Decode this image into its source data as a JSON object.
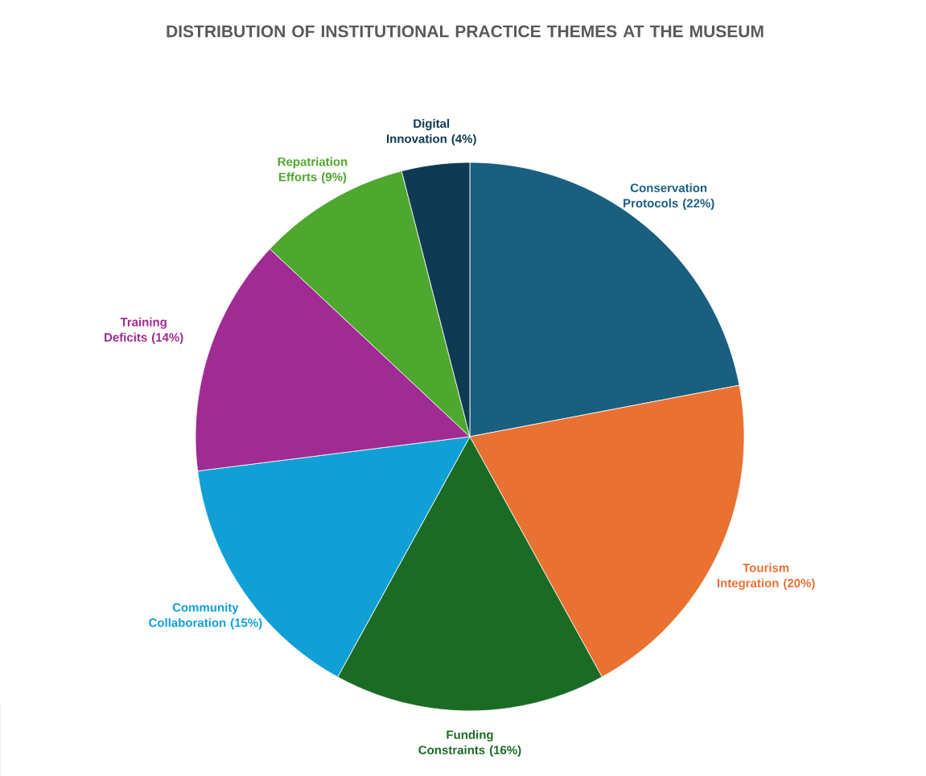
{
  "chart_data": {
    "type": "pie",
    "title": "DISTRIBUTION OF INSTITUTIONAL PRACTICE THEMES AT THE MUSEUM",
    "categories": [
      "Conservation Protocols",
      "Tourism Integration",
      "Funding Constraints",
      "Community Collaboration",
      "Training Deficits",
      "Repatriation Efforts",
      "Digital Innovation"
    ],
    "values": [
      22,
      20,
      16,
      15,
      14,
      9,
      4
    ],
    "value_labels": [
      "(22%)",
      "(20%)",
      "(16%)",
      "(15%)",
      "(14%)",
      "(9%)",
      "(4%)"
    ],
    "colors": [
      "#1a5e80",
      "#e97132",
      "#1b6b24",
      "#10a0d6",
      "#a02b93",
      "#4ea72e",
      "#0f3a53"
    ]
  }
}
